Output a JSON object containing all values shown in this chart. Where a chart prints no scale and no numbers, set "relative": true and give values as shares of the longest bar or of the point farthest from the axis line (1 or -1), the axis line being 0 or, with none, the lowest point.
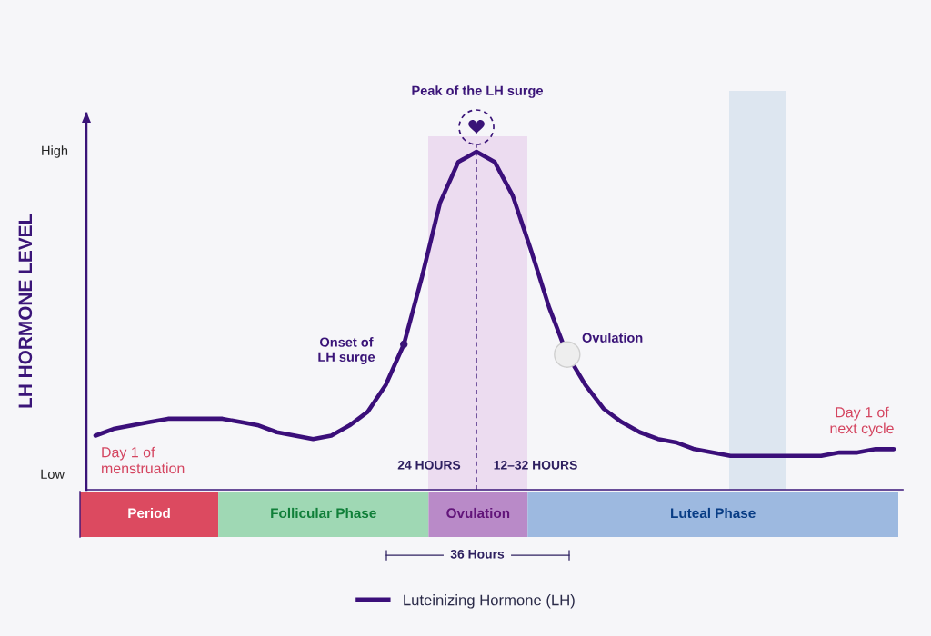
{
  "chart_data": [
    {
      "type": "line",
      "relative": true,
      "ylabel": "LH HORMONE LEVEL",
      "categories": [
        null,
        null,
        null,
        null,
        null,
        null,
        null,
        null,
        null,
        null,
        null,
        null,
        null,
        null,
        null,
        null,
        null,
        null,
        null,
        null,
        null,
        null,
        null,
        null,
        null,
        null,
        null,
        null,
        null,
        null,
        null,
        null,
        null,
        null,
        null,
        null,
        null,
        null,
        null,
        null,
        null,
        null,
        null,
        null,
        null
      ],
      "series": [
        {
          "name": "Luteinizing Hormone (LH)",
          "color": "#3b0f7a",
          "values": [
            0.16,
            0.18,
            0.19,
            0.2,
            0.21,
            0.21,
            0.21,
            0.21,
            0.2,
            0.19,
            0.17,
            0.16,
            0.15,
            0.16,
            0.19,
            0.23,
            0.31,
            0.43,
            0.63,
            0.85,
            0.97,
            1.0,
            0.97,
            0.87,
            0.71,
            0.54,
            0.4,
            0.31,
            0.24,
            0.2,
            0.17,
            0.15,
            0.14,
            0.12,
            0.11,
            0.1,
            0.1,
            0.1,
            0.1,
            0.1,
            0.1,
            0.11,
            0.11,
            0.12,
            0.12
          ]
        }
      ],
      "annotations": [
        "Peak of the LH surge",
        "Onset of\nLH surge",
        "Ovulation",
        "Day 1 of\nmenstruation",
        "Day 1 of\nnext cycle",
        "24 HOURS",
        "12–32 HOURS",
        "36 Hours",
        "High",
        "Low"
      ],
      "legend": "bottom"
    },
    {
      "type": "bar",
      "orientation": "horizontal",
      "stacked": true,
      "relative": true,
      "categories": [
        null
      ],
      "series": [
        {
          "name": "Period",
          "color": "#dc4a60",
          "values": [
            0.169
          ]
        },
        {
          "name": "Follicular Phase",
          "color": "#9fd8b4",
          "values": [
            0.257
          ]
        },
        {
          "name": "Ovulation",
          "color": "#b98ac8",
          "values": [
            0.121
          ]
        },
        {
          "name": "Luteal Phase",
          "color": "#9db9e0",
          "values": [
            0.453
          ]
        }
      ]
    }
  ]
}
